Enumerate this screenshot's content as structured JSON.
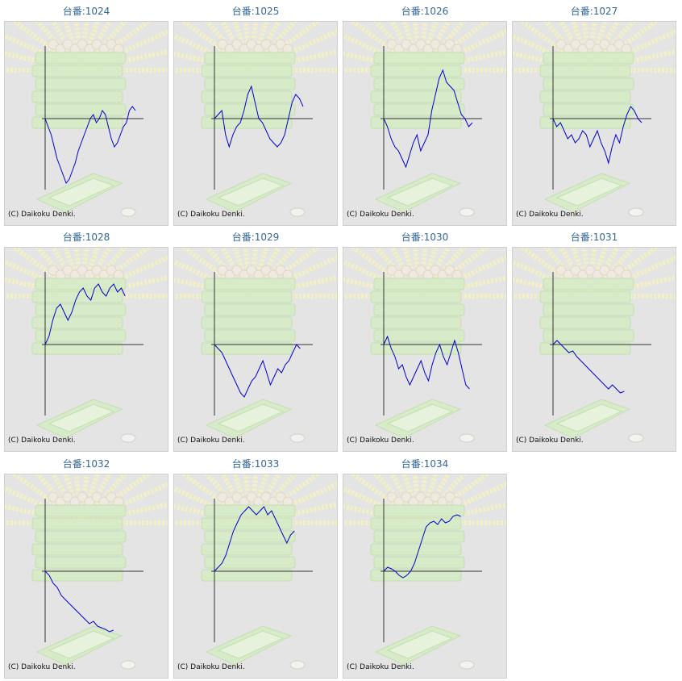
{
  "copyright": "(C) Daikoku Denki.",
  "line_color": "#0000cc",
  "chart_data": [
    {
      "type": "line",
      "title": "台番:1024",
      "values": [
        0,
        -10,
        -20,
        -35,
        -50,
        -60,
        -70,
        -80,
        -75,
        -65,
        -55,
        -40,
        -30,
        -20,
        -10,
        0,
        5,
        -5,
        0,
        10,
        5,
        -10,
        -25,
        -35,
        -30,
        -20,
        -10,
        -5,
        10,
        15,
        10
      ]
    },
    {
      "type": "line",
      "title": "台番:1025",
      "values": [
        0,
        5,
        10,
        -20,
        -35,
        -20,
        -10,
        -5,
        10,
        30,
        40,
        20,
        0,
        -5,
        -15,
        -25,
        -30,
        -35,
        -30,
        -20,
        0,
        20,
        30,
        25,
        15
      ]
    },
    {
      "type": "line",
      "title": "台番:1026",
      "values": [
        0,
        -10,
        -25,
        -35,
        -40,
        -50,
        -60,
        -45,
        -30,
        -20,
        -40,
        -30,
        -20,
        10,
        30,
        50,
        60,
        45,
        40,
        35,
        20,
        5,
        0,
        -10,
        -5
      ]
    },
    {
      "type": "line",
      "title": "台番:1027",
      "values": [
        0,
        -10,
        -5,
        -15,
        -25,
        -20,
        -30,
        -25,
        -15,
        -20,
        -35,
        -25,
        -15,
        -30,
        -40,
        -55,
        -35,
        -20,
        -30,
        -10,
        5,
        15,
        10,
        0,
        -5
      ]
    },
    {
      "type": "line",
      "title": "台番:1028",
      "values": [
        0,
        10,
        30,
        45,
        50,
        40,
        30,
        40,
        55,
        65,
        70,
        60,
        55,
        70,
        75,
        65,
        60,
        70,
        75,
        65,
        70,
        60
      ]
    },
    {
      "type": "line",
      "title": "台番:1029",
      "values": [
        0,
        -5,
        -10,
        -20,
        -30,
        -40,
        -50,
        -60,
        -65,
        -55,
        -45,
        -40,
        -30,
        -20,
        -35,
        -50,
        -40,
        -30,
        -35,
        -25,
        -20,
        -10,
        0,
        -5
      ]
    },
    {
      "type": "line",
      "title": "台番:1030",
      "values": [
        0,
        10,
        -5,
        -15,
        -30,
        -25,
        -40,
        -50,
        -40,
        -30,
        -20,
        -35,
        -45,
        -25,
        -10,
        0,
        -15,
        -25,
        -10,
        5,
        -10,
        -30,
        -50,
        -55
      ]
    },
    {
      "type": "line",
      "title": "台番:1031",
      "values": [
        0,
        5,
        0,
        -5,
        -10,
        -8,
        -15,
        -20,
        -25,
        -30,
        -35,
        -40,
        -45,
        -50,
        -55,
        -50,
        -55,
        -60,
        -58
      ]
    },
    {
      "type": "line",
      "title": "台番:1032",
      "values": [
        0,
        -5,
        -15,
        -20,
        -30,
        -35,
        -40,
        -45,
        -50,
        -55,
        -60,
        -65,
        -62,
        -68,
        -70,
        -72,
        -75,
        -73
      ]
    },
    {
      "type": "line",
      "title": "台番:1033",
      "values": [
        0,
        5,
        10,
        20,
        35,
        50,
        60,
        70,
        75,
        80,
        75,
        70,
        75,
        80,
        70,
        75,
        65,
        55,
        45,
        35,
        45,
        50
      ]
    },
    {
      "type": "line",
      "title": "台番:1034",
      "values": [
        0,
        5,
        3,
        0,
        -5,
        -8,
        -5,
        0,
        10,
        25,
        40,
        55,
        60,
        62,
        58,
        65,
        60,
        62,
        68,
        70,
        68
      ]
    }
  ]
}
